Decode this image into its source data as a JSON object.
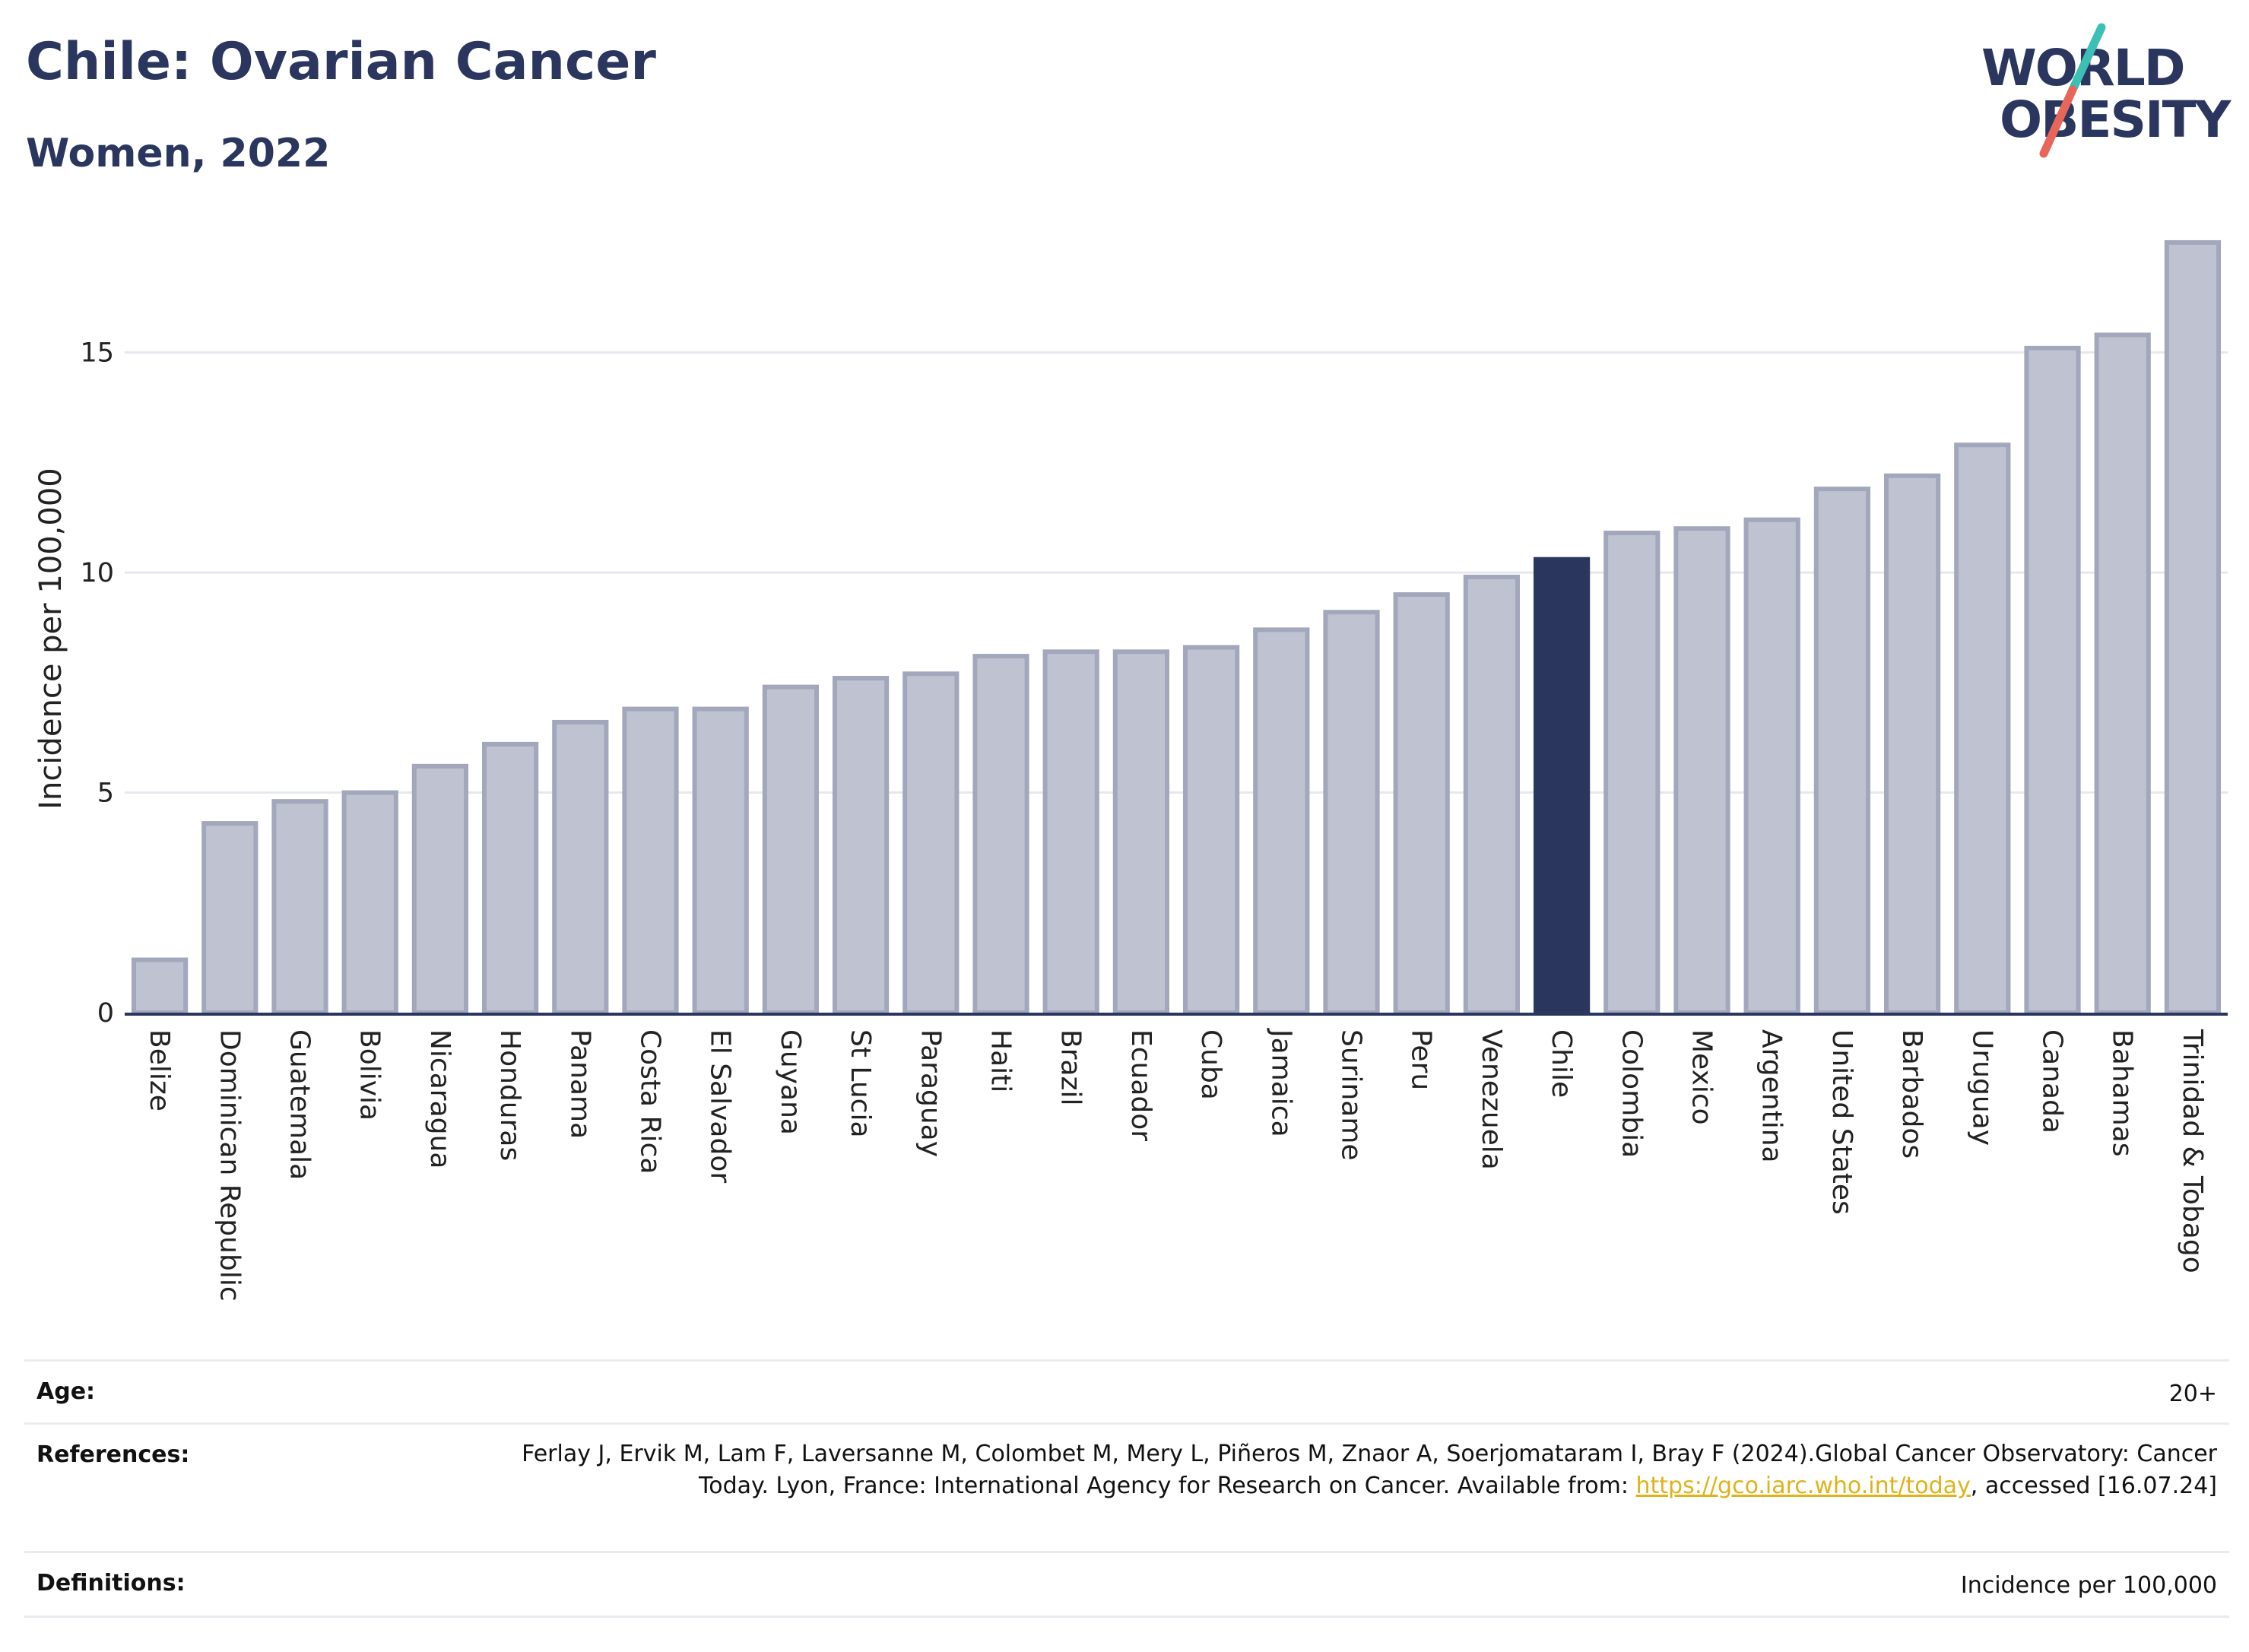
{
  "header": {
    "title": "Chile: Ovarian Cancer",
    "subtitle": "Women, 2022"
  },
  "logo": {
    "line1": "WORLD",
    "line2": "OBESITY",
    "colors": {
      "text": "#2b365f",
      "slash_top": "#3cbfb4",
      "slash_bottom": "#e8655a"
    }
  },
  "chart_data": {
    "type": "bar",
    "ylabel": "Incidence per 100,000",
    "xlabel": "",
    "ylim": [
      0,
      18
    ],
    "yticks": [
      0,
      5,
      10,
      15
    ],
    "grid": true,
    "highlight": "Chile",
    "colors": {
      "bar": "#bfc3d1",
      "bar_border": "#a2a7bb",
      "highlight": "#2b365f",
      "grid": "#e6e8ee",
      "axis": "#2b365f"
    },
    "categories": [
      "Belize",
      "Dominican Republic",
      "Guatemala",
      "Bolivia",
      "Nicaragua",
      "Honduras",
      "Panama",
      "Costa Rica",
      "El Salvador",
      "Guyana",
      "St Lucia",
      "Paraguay",
      "Haiti",
      "Brazil",
      "Ecuador",
      "Cuba",
      "Jamaica",
      "Suriname",
      "Peru",
      "Venezuela",
      "Chile",
      "Colombia",
      "Mexico",
      "Argentina",
      "United States",
      "Barbados",
      "Uruguay",
      "Canada",
      "Bahamas",
      "Trinidad & Tobago"
    ],
    "values": [
      1.2,
      4.3,
      4.8,
      5.0,
      5.6,
      6.1,
      6.6,
      6.9,
      6.9,
      7.4,
      7.6,
      7.7,
      8.1,
      8.2,
      8.2,
      8.3,
      8.7,
      9.1,
      9.5,
      9.9,
      10.3,
      10.9,
      11.0,
      11.2,
      11.9,
      12.2,
      12.9,
      15.1,
      15.4,
      17.5
    ]
  },
  "info": {
    "age_label": "Age:",
    "age_value": "20+",
    "references_label": "References:",
    "references_text": "Ferlay J, Ervik M, Lam F, Laversanne M, Colombet M, Mery L, Piñeros M, Znaor A, Soerjomataram I, Bray F (2024).Global Cancer Observatory: Cancer Today. Lyon, France: International Agency for Research on Cancer. Available from: ",
    "references_link": "https://gco.iarc.who.int/today",
    "references_suffix": ", accessed [16.07.24]",
    "definitions_label": "Definitions:",
    "definitions_value": "Incidence per 100,000"
  }
}
